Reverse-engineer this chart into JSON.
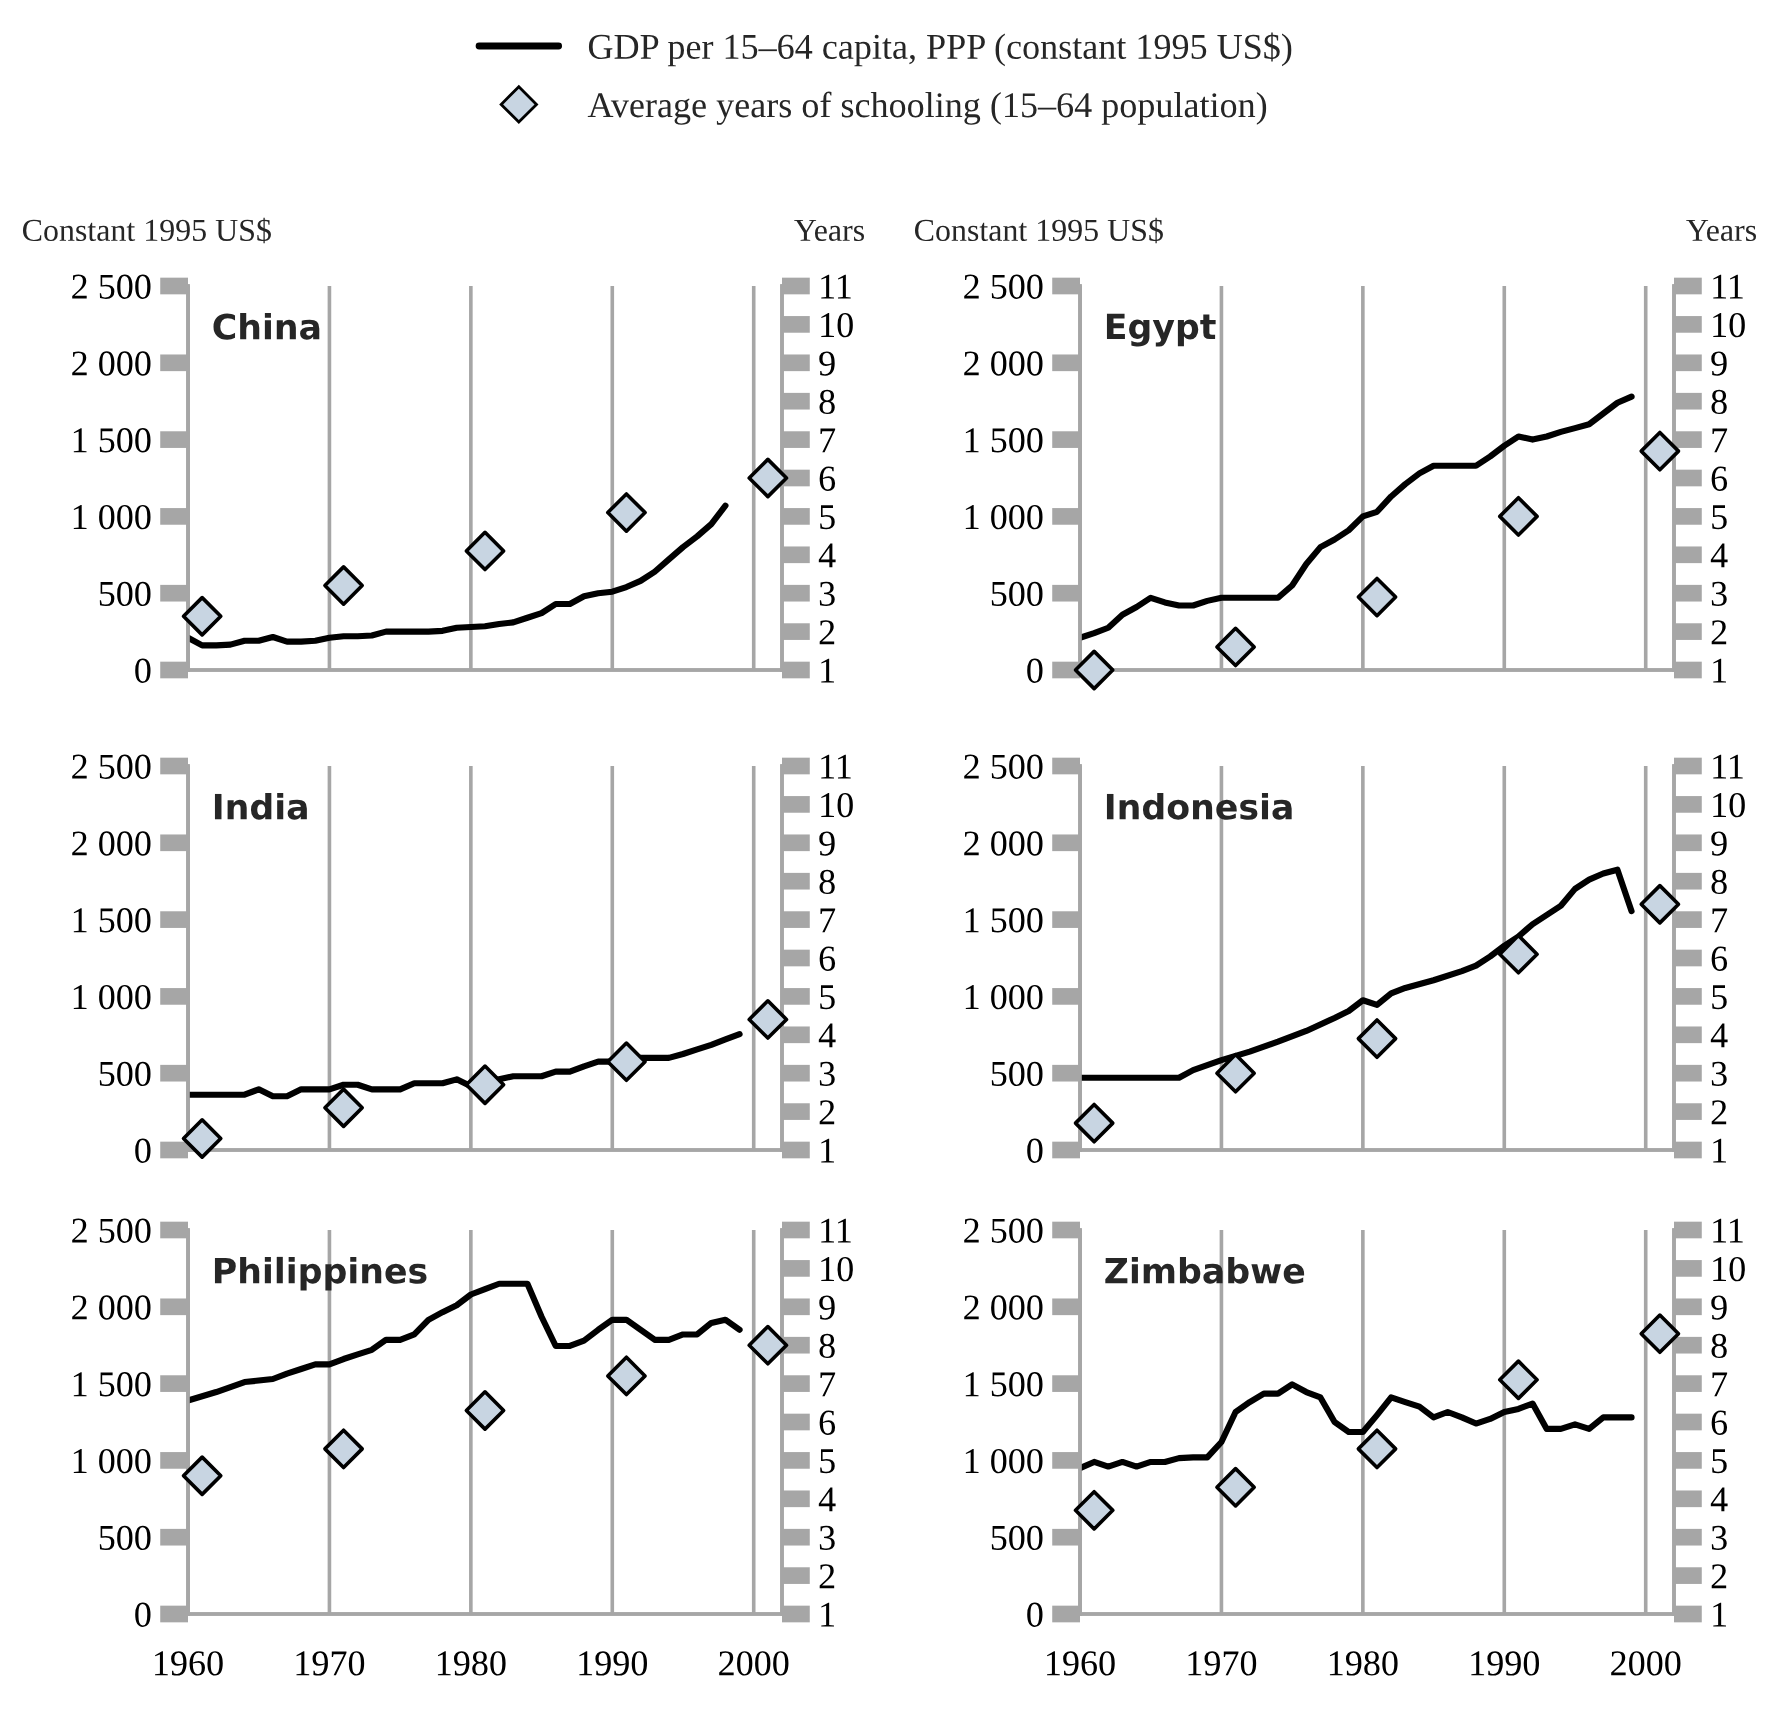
{
  "chart_data": [
    {
      "type": "line",
      "title": "China",
      "ylabel": "Constant 1995 US$",
      "y2label": "Years",
      "xlim": [
        1960,
        2002
      ],
      "xticks": [
        1960,
        1970,
        1980,
        1990,
        2000
      ],
      "ylim": [
        0,
        2500
      ],
      "yticks": [
        {
          "value": 0,
          "label": "0"
        },
        {
          "value": 500,
          "label": "500"
        },
        {
          "value": 1000,
          "label": "1 000"
        },
        {
          "value": 1500,
          "label": "1 500"
        },
        {
          "value": 2000,
          "label": "2 000"
        },
        {
          "value": 2500,
          "label": "2 500"
        }
      ],
      "y2lim": [
        1,
        11
      ],
      "y2ticks": [
        1,
        2,
        3,
        4,
        5,
        6,
        7,
        8,
        9,
        10,
        11
      ],
      "grid": "x",
      "legend": "top",
      "tick_labels": "y",
      "series": [
        {
          "name": "GDP per 15–64 capita, PPP (constant 1995 US$)",
          "color": "#000000",
          "x": [
            1960,
            1961,
            1962,
            1963,
            1964,
            1965,
            1966,
            1967,
            1968,
            1969,
            1970,
            1971,
            1972,
            1973,
            1974,
            1975,
            1976,
            1977,
            1978,
            1979,
            1980,
            1981,
            1982,
            1983,
            1984,
            1985,
            1986,
            1987,
            1988,
            1989,
            1990,
            1991,
            1992,
            1993,
            1994,
            1995,
            1996,
            1997,
            1998
          ],
          "values": [
            210,
            160,
            160,
            165,
            190,
            190,
            215,
            185,
            185,
            190,
            210,
            220,
            220,
            225,
            250,
            250,
            250,
            250,
            255,
            275,
            280,
            285,
            300,
            310,
            340,
            370,
            430,
            430,
            480,
            500,
            510,
            540,
            580,
            640,
            720,
            800,
            870,
            950,
            1070
          ]
        },
        {
          "name": "Average years of schooling (15–64 population)",
          "type": "scatter",
          "axis": "y2",
          "marker": "diamond",
          "color": "#c8d5e2",
          "x": [
            1961,
            1971,
            1981,
            1991,
            2001
          ],
          "values": [
            2.4,
            3.2,
            4.1,
            5.1,
            6.0
          ]
        }
      ]
    },
    {
      "type": "line",
      "title": "Egypt",
      "ylabel": "Constant 1995 US$",
      "y2label": "Years",
      "xlim": [
        1960,
        2002
      ],
      "xticks": [
        1960,
        1970,
        1980,
        1990,
        2000
      ],
      "ylim": [
        0,
        2500
      ],
      "yticks": [
        {
          "value": 0,
          "label": "0"
        },
        {
          "value": 500,
          "label": "500"
        },
        {
          "value": 1000,
          "label": "1 000"
        },
        {
          "value": 1500,
          "label": "1 500"
        },
        {
          "value": 2000,
          "label": "2 000"
        },
        {
          "value": 2500,
          "label": "2 500"
        }
      ],
      "y2lim": [
        1,
        11
      ],
      "y2ticks": [
        1,
        2,
        3,
        4,
        5,
        6,
        7,
        8,
        9,
        10,
        11
      ],
      "grid": "x",
      "tick_labels": "y",
      "series": [
        {
          "color": "#000000",
          "x": [
            1960,
            1961,
            1962,
            1963,
            1964,
            1965,
            1966,
            1967,
            1968,
            1969,
            1970,
            1971,
            1972,
            1973,
            1974,
            1975,
            1976,
            1977,
            1978,
            1979,
            1980,
            1981,
            1982,
            1983,
            1984,
            1985,
            1986,
            1987,
            1988,
            1989,
            1990,
            1991,
            1992,
            1993,
            1994,
            1995,
            1996,
            1997,
            1998,
            1999
          ],
          "values": [
            210,
            240,
            275,
            360,
            410,
            470,
            440,
            420,
            420,
            450,
            470,
            470,
            470,
            470,
            470,
            550,
            690,
            800,
            850,
            910,
            1000,
            1030,
            1130,
            1210,
            1280,
            1330,
            1330,
            1330,
            1330,
            1390,
            1460,
            1520,
            1500,
            1520,
            1550,
            1575,
            1600,
            1670,
            1740,
            1780
          ]
        },
        {
          "type": "scatter",
          "axis": "y2",
          "marker": "diamond",
          "color": "#c8d5e2",
          "x": [
            1961,
            1971,
            1981,
            1991,
            2001
          ],
          "values": [
            1.0,
            1.6,
            2.9,
            5.0,
            6.7
          ]
        }
      ]
    },
    {
      "type": "line",
      "title": "India",
      "xlim": [
        1960,
        2002
      ],
      "xticks": [
        1960,
        1970,
        1980,
        1990,
        2000
      ],
      "ylim": [
        0,
        2500
      ],
      "yticks": [
        {
          "value": 0,
          "label": "0"
        },
        {
          "value": 500,
          "label": "500"
        },
        {
          "value": 1000,
          "label": "1 000"
        },
        {
          "value": 1500,
          "label": "1 500"
        },
        {
          "value": 2000,
          "label": "2 000"
        },
        {
          "value": 2500,
          "label": "2 500"
        }
      ],
      "y2lim": [
        1,
        11
      ],
      "y2ticks": [
        1,
        2,
        3,
        4,
        5,
        6,
        7,
        8,
        9,
        10,
        11
      ],
      "grid": "x",
      "tick_labels": "y",
      "series": [
        {
          "color": "#000000",
          "x": [
            1960,
            1961,
            1962,
            1963,
            1964,
            1965,
            1966,
            1967,
            1968,
            1969,
            1970,
            1971,
            1972,
            1973,
            1974,
            1975,
            1976,
            1977,
            1978,
            1979,
            1980,
            1981,
            1982,
            1983,
            1984,
            1985,
            1986,
            1987,
            1988,
            1989,
            1990,
            1991,
            1992,
            1993,
            1994,
            1995,
            1996,
            1997,
            1998,
            1999
          ],
          "values": [
            360,
            360,
            360,
            360,
            360,
            395,
            350,
            350,
            395,
            395,
            395,
            425,
            425,
            395,
            395,
            395,
            435,
            435,
            435,
            460,
            415,
            440,
            460,
            480,
            480,
            480,
            510,
            510,
            545,
            575,
            575,
            590,
            600,
            600,
            600,
            625,
            655,
            685,
            720,
            755
          ]
        },
        {
          "type": "scatter",
          "axis": "y2",
          "marker": "diamond",
          "color": "#c8d5e2",
          "x": [
            1961,
            1971,
            1981,
            1991,
            2001
          ],
          "values": [
            1.3,
            2.1,
            2.7,
            3.3,
            4.4
          ]
        }
      ]
    },
    {
      "type": "line",
      "title": "Indonesia",
      "xlim": [
        1960,
        2002
      ],
      "xticks": [
        1960,
        1970,
        1980,
        1990,
        2000
      ],
      "ylim": [
        0,
        2500
      ],
      "yticks": [
        {
          "value": 0,
          "label": "0"
        },
        {
          "value": 500,
          "label": "500"
        },
        {
          "value": 1000,
          "label": "1 000"
        },
        {
          "value": 1500,
          "label": "1 500"
        },
        {
          "value": 2000,
          "label": "2 000"
        },
        {
          "value": 2500,
          "label": "2 500"
        }
      ],
      "y2lim": [
        1,
        11
      ],
      "y2ticks": [
        1,
        2,
        3,
        4,
        5,
        6,
        7,
        8,
        9,
        10,
        11
      ],
      "grid": "x",
      "tick_labels": "y",
      "series": [
        {
          "color": "#000000",
          "x": [
            1960,
            1967,
            1968,
            1970,
            1972,
            1974,
            1976,
            1978,
            1979,
            1980,
            1981,
            1982,
            1983,
            1985,
            1987,
            1988,
            1989,
            1990,
            1991,
            1992,
            1993,
            1994,
            1995,
            1996,
            1997,
            1998,
            1999
          ],
          "values": [
            470,
            470,
            520,
            585,
            640,
            705,
            775,
            860,
            905,
            975,
            945,
            1020,
            1055,
            1105,
            1165,
            1200,
            1260,
            1330,
            1390,
            1470,
            1530,
            1590,
            1700,
            1760,
            1800,
            1825,
            1555
          ]
        },
        {
          "type": "scatter",
          "axis": "y2",
          "marker": "diamond",
          "color": "#c8d5e2",
          "x": [
            1961,
            1971,
            1981,
            1991,
            2001
          ],
          "values": [
            1.7,
            3.0,
            3.9,
            6.1,
            7.4
          ]
        }
      ]
    },
    {
      "type": "line",
      "title": "Philippines",
      "xlim": [
        1960,
        2002
      ],
      "xticks": [
        1960,
        1970,
        1980,
        1990,
        2000
      ],
      "ylim": [
        0,
        2500
      ],
      "yticks": [
        {
          "value": 0,
          "label": "0"
        },
        {
          "value": 500,
          "label": "500"
        },
        {
          "value": 1000,
          "label": "1 000"
        },
        {
          "value": 1500,
          "label": "1 500"
        },
        {
          "value": 2000,
          "label": "2 000"
        },
        {
          "value": 2500,
          "label": "2 500"
        }
      ],
      "y2lim": [
        1,
        11
      ],
      "y2ticks": [
        1,
        2,
        3,
        4,
        5,
        6,
        7,
        8,
        9,
        10,
        11
      ],
      "grid": "x",
      "series": [
        {
          "color": "#000000",
          "x": [
            1960,
            1962,
            1964,
            1965,
            1966,
            1967,
            1968,
            1969,
            1970,
            1971,
            1972,
            1973,
            1974,
            1975,
            1976,
            1977,
            1978,
            1979,
            1980,
            1981,
            1982,
            1983,
            1984,
            1985,
            1986,
            1987,
            1988,
            1989,
            1990,
            1991,
            1992,
            1993,
            1994,
            1995,
            1996,
            1997,
            1998,
            1999
          ],
          "values": [
            1390,
            1445,
            1510,
            1520,
            1530,
            1565,
            1595,
            1625,
            1625,
            1660,
            1690,
            1720,
            1785,
            1785,
            1820,
            1915,
            1965,
            2010,
            2080,
            2115,
            2150,
            2150,
            2150,
            1935,
            1745,
            1745,
            1780,
            1850,
            1915,
            1915,
            1850,
            1785,
            1785,
            1820,
            1820,
            1895,
            1915,
            1850
          ]
        },
        {
          "type": "scatter",
          "axis": "y2",
          "marker": "diamond",
          "color": "#c8d5e2",
          "x": [
            1961,
            1971,
            1981,
            1991,
            2001
          ],
          "values": [
            4.6,
            5.3,
            6.3,
            7.2,
            8.0
          ]
        }
      ]
    },
    {
      "type": "line",
      "title": "Zimbabwe",
      "xlim": [
        1960,
        2002
      ],
      "xticks": [
        1960,
        1970,
        1980,
        1990,
        2000
      ],
      "ylim": [
        0,
        2500
      ],
      "yticks": [
        {
          "value": 0,
          "label": "0"
        },
        {
          "value": 500,
          "label": "500"
        },
        {
          "value": 1000,
          "label": "1 000"
        },
        {
          "value": 1500,
          "label": "1 500"
        },
        {
          "value": 2000,
          "label": "2 000"
        },
        {
          "value": 2500,
          "label": "2 500"
        }
      ],
      "y2lim": [
        1,
        11
      ],
      "y2ticks": [
        1,
        2,
        3,
        4,
        5,
        6,
        7,
        8,
        9,
        10,
        11
      ],
      "grid": "x",
      "series": [
        {
          "color": "#000000",
          "x": [
            1960,
            1961,
            1962,
            1963,
            1964,
            1965,
            1966,
            1967,
            1968,
            1969,
            1970,
            1971,
            1972,
            1973,
            1974,
            1975,
            1976,
            1977,
            1978,
            1979,
            1980,
            1981,
            1982,
            1983,
            1984,
            1985,
            1986,
            1987,
            1988,
            1989,
            1990,
            1991,
            1992,
            1993,
            1994,
            1995,
            1996,
            1997,
            1998,
            1999
          ],
          "values": [
            950,
            990,
            960,
            990,
            960,
            990,
            990,
            1015,
            1020,
            1020,
            1120,
            1315,
            1380,
            1435,
            1435,
            1495,
            1445,
            1410,
            1250,
            1185,
            1185,
            1295,
            1410,
            1380,
            1350,
            1280,
            1315,
            1280,
            1240,
            1270,
            1315,
            1335,
            1370,
            1205,
            1205,
            1235,
            1205,
            1280,
            1280,
            1280
          ]
        },
        {
          "type": "scatter",
          "axis": "y2",
          "marker": "diamond",
          "color": "#c8d5e2",
          "x": [
            1961,
            1971,
            1981,
            1991,
            2001
          ],
          "values": [
            3.7,
            4.3,
            5.3,
            7.1,
            8.3
          ]
        }
      ]
    }
  ]
}
